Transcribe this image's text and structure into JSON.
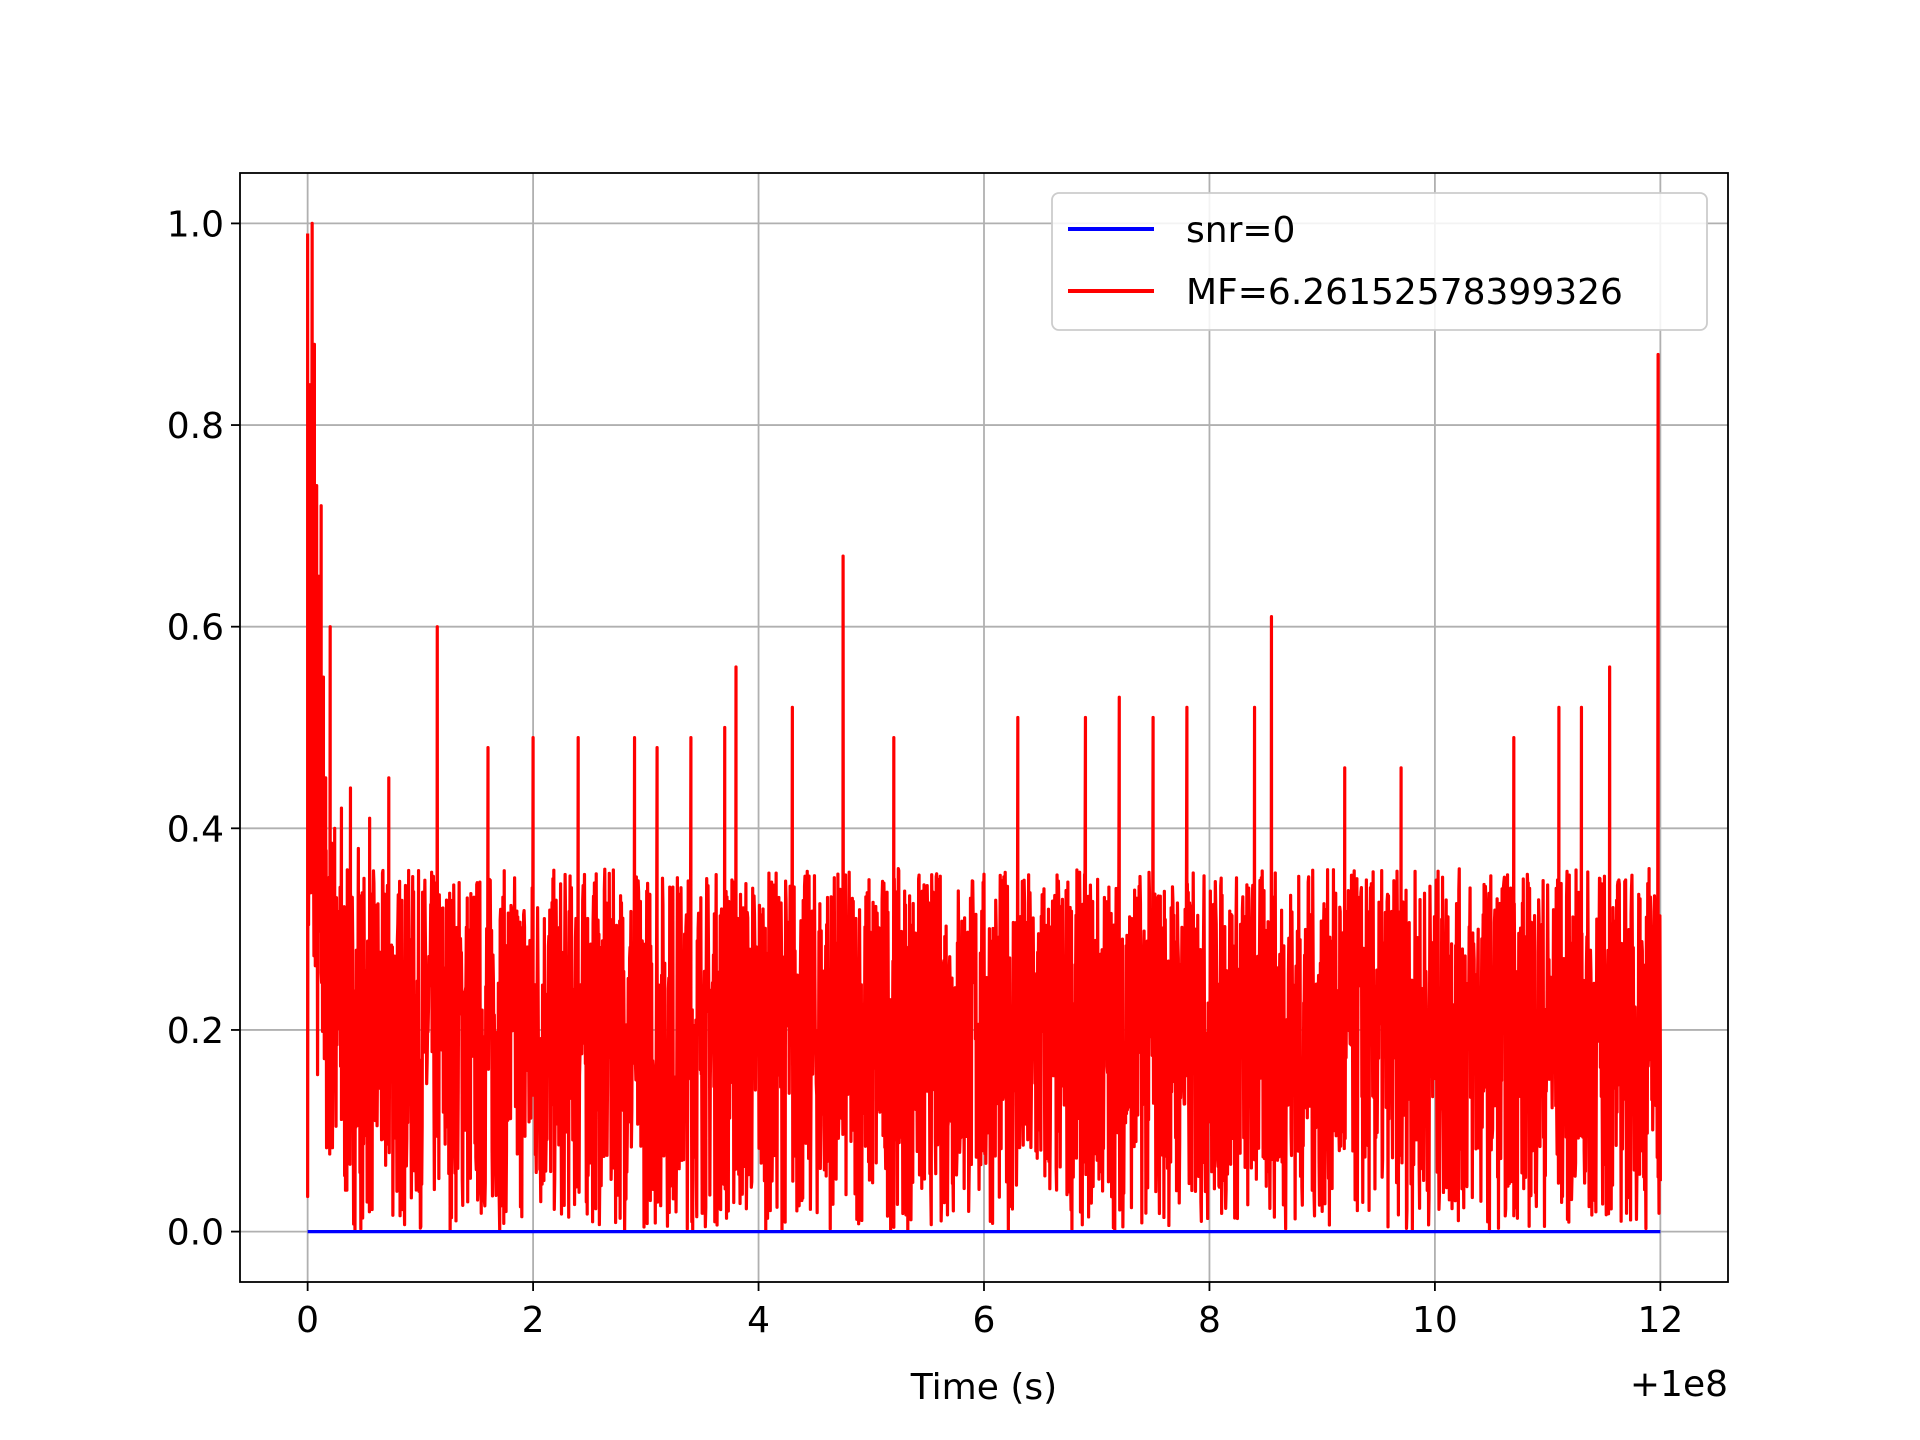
{
  "chart_data": {
    "type": "line",
    "title": "",
    "xlabel": "Time (s)",
    "ylabel": "",
    "x_offset_label": "+1e8",
    "xlim": [
      -0.6,
      12.6
    ],
    "ylim": [
      -0.05,
      1.05
    ],
    "x_ticks": [
      0,
      2,
      4,
      6,
      8,
      10,
      12
    ],
    "x_tick_labels": [
      "0",
      "2",
      "4",
      "6",
      "8",
      "10",
      "12"
    ],
    "y_ticks": [
      0.0,
      0.2,
      0.4,
      0.6,
      0.8,
      1.0
    ],
    "y_tick_labels": [
      "0.0",
      "0.2",
      "0.4",
      "0.6",
      "0.8",
      "1.0"
    ],
    "grid": true,
    "legend_position": "top-right",
    "series": [
      {
        "name": "snr=0",
        "color": "#0000ff",
        "x": [
          0,
          12
        ],
        "values": [
          0,
          0
        ]
      },
      {
        "name": "MF=6.26152578399326",
        "color": "#ff0000",
        "generated_noise_range": [
          0.0,
          0.36
        ],
        "x": [
          0.0,
          0.02,
          0.04,
          0.06,
          0.08,
          0.1,
          0.12,
          0.14,
          0.16,
          0.2,
          0.24,
          0.3,
          0.38,
          0.45,
          0.55,
          0.72,
          1.15,
          1.6,
          2.0,
          2.4,
          2.9,
          3.1,
          3.4,
          3.7,
          3.8,
          4.3,
          4.75,
          5.2,
          6.3,
          6.9,
          7.2,
          7.5,
          7.8,
          8.4,
          8.55,
          9.2,
          9.7,
          10.7,
          11.1,
          11.3,
          11.55,
          11.82,
          11.9,
          11.98
        ],
        "values": [
          0.99,
          0.84,
          1.0,
          0.88,
          0.74,
          0.65,
          0.72,
          0.55,
          0.45,
          0.6,
          0.4,
          0.42,
          0.44,
          0.38,
          0.41,
          0.45,
          0.6,
          0.48,
          0.49,
          0.49,
          0.49,
          0.48,
          0.49,
          0.5,
          0.56,
          0.52,
          0.67,
          0.49,
          0.51,
          0.51,
          0.53,
          0.51,
          0.52,
          0.52,
          0.61,
          0.46,
          0.46,
          0.49,
          0.52,
          0.52,
          0.56,
          0.33,
          0.36,
          0.87
        ],
        "end_value": 0.05
      }
    ]
  }
}
